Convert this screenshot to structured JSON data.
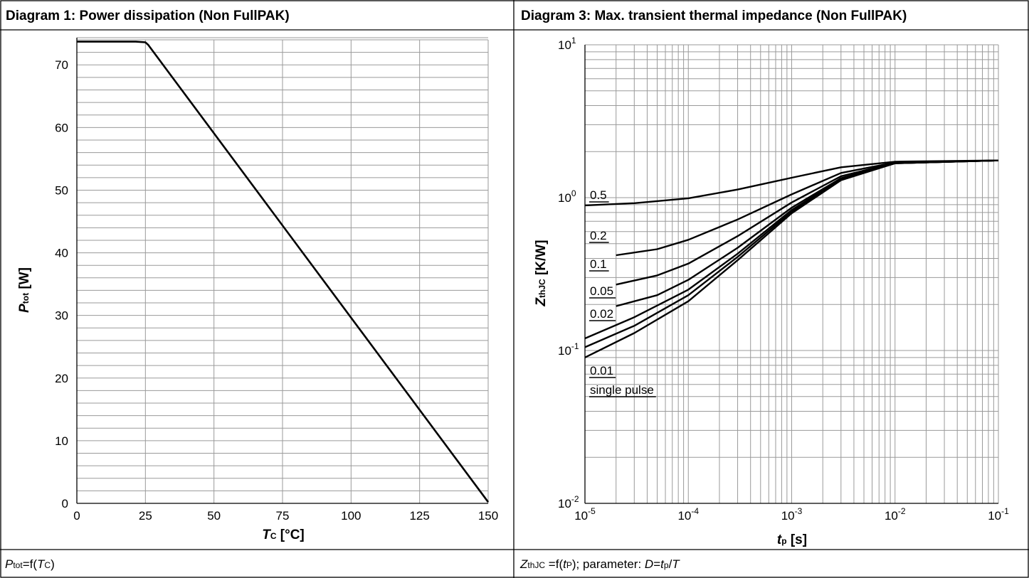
{
  "left_panel": {
    "title": "Diagram 1: Power dissipation (Non FullPAK)",
    "caption": {
      "p": "P",
      "p_sub": "tot",
      "mid": "=f(",
      "t": "T",
      "t_sub": "C",
      "end": ")"
    }
  },
  "right_panel": {
    "title": "Diagram 3: Max. transient thermal impedance (Non FullPAK)",
    "caption": {
      "z": "Z",
      "z_sub": "thJC",
      "mid": " =f(",
      "t": "t",
      "t_sub": "P",
      "mid2": "); parameter: ",
      "d": "D",
      "eq": "=",
      "tp": "t",
      "tp_sub": "p",
      "slash": "/",
      "T": "T"
    }
  },
  "chart_data": [
    {
      "type": "line",
      "xlabel": {
        "main": "T",
        "sub": "C",
        "unit": " [°C]"
      },
      "ylabel": {
        "main": "P",
        "sub": "tot",
        "unit": " [W]"
      },
      "xlim": [
        0,
        150
      ],
      "ylim": [
        0,
        74
      ],
      "xticks": [
        0,
        25,
        50,
        75,
        100,
        125,
        150
      ],
      "yticks": [
        0,
        10,
        20,
        30,
        40,
        50,
        60,
        70
      ],
      "grid": true,
      "series": [
        {
          "x": [
            0,
            21.5,
            25,
            26,
            150
          ],
          "y": [
            73.7,
            73.7,
            73.6,
            73.2,
            0.2
          ]
        }
      ]
    },
    {
      "type": "line",
      "xscale": "log",
      "yscale": "log",
      "xlabel": {
        "main": "t",
        "sub": "p",
        "unit": " [s]"
      },
      "ylabel": {
        "main": "Z",
        "sub": "thJC",
        "unit": " [K/W]"
      },
      "xlim": [
        1e-05,
        0.1
      ],
      "ylim": [
        0.01,
        10
      ],
      "xticks": [
        {
          "base": "10",
          "exp": "-5"
        },
        {
          "base": "10",
          "exp": "-4"
        },
        {
          "base": "10",
          "exp": "-3"
        },
        {
          "base": "10",
          "exp": "-2"
        },
        {
          "base": "10",
          "exp": "-1"
        }
      ],
      "yticks": [
        {
          "base": "10",
          "exp": "-2"
        },
        {
          "base": "10",
          "exp": "-1"
        },
        {
          "base": "10",
          "exp": "0"
        },
        {
          "base": "10",
          "exp": "1"
        }
      ],
      "grid": true,
      "series": [
        {
          "name": "0.5",
          "x": [
            1e-05,
            3e-05,
            0.0001,
            0.0003,
            0.001,
            0.003,
            0.01,
            0.1
          ],
          "y": [
            0.89,
            0.92,
            0.99,
            1.13,
            1.35,
            1.58,
            1.72,
            1.75
          ]
        },
        {
          "name": "0.2",
          "x": [
            2e-05,
            5e-05,
            0.0001,
            0.0003,
            0.001,
            0.003,
            0.01,
            0.1
          ],
          "y": [
            0.42,
            0.46,
            0.53,
            0.72,
            1.05,
            1.45,
            1.7,
            1.75
          ]
        },
        {
          "name": "0.1",
          "x": [
            2e-05,
            5e-05,
            0.0001,
            0.0003,
            0.001,
            0.003,
            0.01,
            0.1
          ],
          "y": [
            0.27,
            0.31,
            0.37,
            0.56,
            0.93,
            1.38,
            1.69,
            1.75
          ]
        },
        {
          "name": "0.05",
          "x": [
            2e-05,
            5e-05,
            0.0001,
            0.0003,
            0.001,
            0.003,
            0.01,
            0.1
          ],
          "y": [
            0.195,
            0.23,
            0.29,
            0.47,
            0.86,
            1.34,
            1.68,
            1.75
          ]
        },
        {
          "name": "0.02",
          "x": [
            1e-05,
            3e-05,
            0.0001,
            0.0003,
            0.001,
            0.003,
            0.01,
            0.1
          ],
          "y": [
            0.12,
            0.165,
            0.25,
            0.43,
            0.83,
            1.32,
            1.68,
            1.75
          ]
        },
        {
          "name": "0.01",
          "x": [
            1e-05,
            3e-05,
            0.0001,
            0.0003,
            0.001,
            0.003,
            0.01,
            0.1
          ],
          "y": [
            0.105,
            0.145,
            0.23,
            0.41,
            0.81,
            1.31,
            1.68,
            1.75
          ]
        },
        {
          "name": "single pulse",
          "x": [
            1e-05,
            3e-05,
            0.0001,
            0.0003,
            0.001,
            0.003,
            0.01,
            0.1
          ],
          "y": [
            0.09,
            0.13,
            0.21,
            0.39,
            0.79,
            1.3,
            1.68,
            1.75
          ]
        }
      ]
    }
  ]
}
